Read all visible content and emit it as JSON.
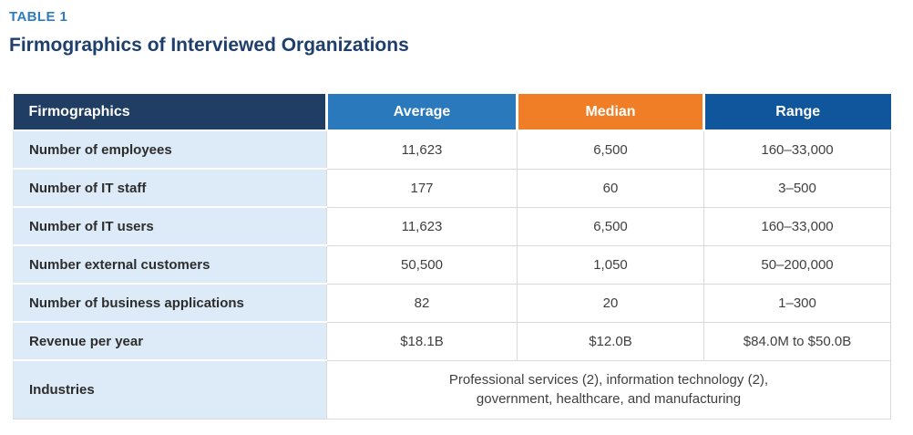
{
  "page": {
    "table_label": "TABLE 1",
    "title": "Firmographics of Interviewed Organizations"
  },
  "colors": {
    "table_label_blue": "#2e7cc1",
    "title_navy": "#1e3f6e",
    "header_firmographics_bg": "#203e64",
    "header_average_bg": "#2a79bd",
    "header_median_bg": "#f07e26",
    "header_range_bg": "#0f569c",
    "label_cell_bg": "#dcebf7",
    "cell_border_gray": "#d9d9d9"
  },
  "table": {
    "columns": [
      "Firmographics",
      "Average",
      "Median",
      "Range"
    ],
    "rows": [
      {
        "label": "Number of employees",
        "average": "11,623",
        "median": "6,500",
        "range": "160–33,000"
      },
      {
        "label": "Number of IT staff",
        "average": "177",
        "median": "60",
        "range": "3–500"
      },
      {
        "label": "Number of IT users",
        "average": "11,623",
        "median": "6,500",
        "range": "160–33,000"
      },
      {
        "label": "Number external customers",
        "average": "50,500",
        "median": "1,050",
        "range": "50–200,000"
      },
      {
        "label": "Number of business applications",
        "average": "82",
        "median": "20",
        "range": "1–300"
      },
      {
        "label": "Revenue per year",
        "average": "$18.1B",
        "median": "$12.0B",
        "range": "$84.0M to $50.0B"
      }
    ],
    "industries": {
      "label": "Industries",
      "value": "Professional services (2), information technology (2), government, healthcare, and manufacturing"
    }
  }
}
